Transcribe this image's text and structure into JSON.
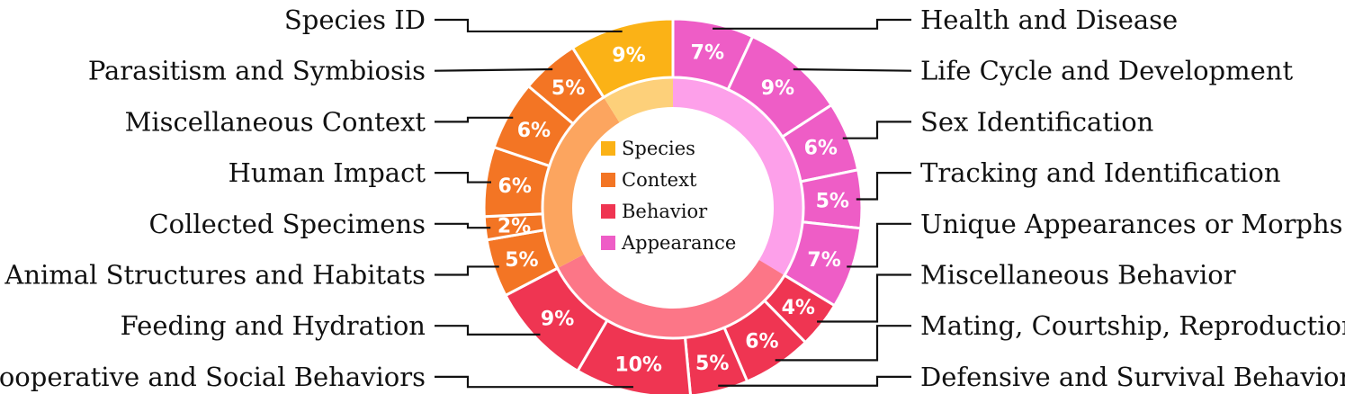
{
  "chart_data": {
    "type": "pie",
    "style": "nested-donut",
    "inner_ring": [
      {
        "name": "Species",
        "color": "#fdd07a"
      },
      {
        "name": "Context",
        "color": "#fca55f"
      },
      {
        "name": "Behavior",
        "color": "#fc7687"
      },
      {
        "name": "Appearance",
        "color": "#fda0ea"
      }
    ],
    "outer_ring": [
      {
        "label": "Health and Disease",
        "value": 7,
        "display": "7%",
        "group": "Appearance"
      },
      {
        "label": "Life Cycle and Development",
        "value": 9,
        "display": "9%",
        "group": "Appearance"
      },
      {
        "label": "Sex Identification",
        "value": 6,
        "display": "6%",
        "group": "Appearance"
      },
      {
        "label": "Tracking and Identification",
        "value": 5,
        "display": "5%",
        "group": "Appearance"
      },
      {
        "label": "Unique Appearances or Morphs",
        "value": 7,
        "display": "7%",
        "group": "Appearance"
      },
      {
        "label": "Miscellaneous Behavior",
        "value": 4,
        "display": "4%",
        "group": "Behavior"
      },
      {
        "label": "Mating, Courtship, Reproduction",
        "value": 6,
        "display": "6%",
        "group": "Behavior"
      },
      {
        "label": "Defensive and Survival Behaviors",
        "value": 5,
        "display": "5%",
        "group": "Behavior"
      },
      {
        "label": "Cooperative and Social Behaviors",
        "value": 10,
        "display": "10%",
        "group": "Behavior"
      },
      {
        "label": "Feeding and Hydration",
        "value": 9,
        "display": "9%",
        "group": "Behavior"
      },
      {
        "label": "Animal Structures and Habitats",
        "value": 5,
        "display": "5%",
        "group": "Context"
      },
      {
        "label": "Collected Specimens",
        "value": 2,
        "display": "2%",
        "group": "Context"
      },
      {
        "label": "Human Impact",
        "value": 6,
        "display": "6%",
        "group": "Context"
      },
      {
        "label": "Miscellaneous Context",
        "value": 6,
        "display": "6%",
        "group": "Context"
      },
      {
        "label": "Parasitism and Symbiosis",
        "value": 5,
        "display": "5%",
        "group": "Context"
      },
      {
        "label": "Species ID",
        "value": 9,
        "display": "9%",
        "group": "Species"
      }
    ],
    "outer_colors": {
      "Species": "#fbb216",
      "Context": "#f37524",
      "Behavior": "#ef3552",
      "Appearance": "#ee5dc6"
    },
    "legend": {
      "placement": "center",
      "entries": [
        "Species",
        "Context",
        "Behavior",
        "Appearance"
      ]
    }
  }
}
